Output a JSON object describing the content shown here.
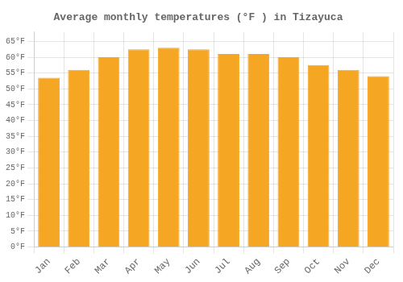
{
  "chart_data": {
    "type": "bar",
    "title": "Average monthly temperatures (°F ) in Tizayuca",
    "categories": [
      "Jan",
      "Feb",
      "Mar",
      "Apr",
      "May",
      "Jun",
      "Jul",
      "Aug",
      "Sep",
      "Oct",
      "Nov",
      "Dec"
    ],
    "values": [
      53.5,
      56.0,
      60.0,
      62.5,
      63.0,
      62.5,
      61.0,
      61.0,
      60.0,
      57.5,
      56.0,
      54.0
    ],
    "color": "#F5A623",
    "ylim": [
      0,
      68
    ],
    "yticks": [
      {
        "value": 0,
        "label": "0°F"
      },
      {
        "value": 5,
        "label": "5°F"
      },
      {
        "value": 10,
        "label": "10°F"
      },
      {
        "value": 15,
        "label": "15°F"
      },
      {
        "value": 20,
        "label": "20°F"
      },
      {
        "value": 25,
        "label": "25°F"
      },
      {
        "value": 30,
        "label": "30°F"
      },
      {
        "value": 35,
        "label": "35°F"
      },
      {
        "value": 40,
        "label": "40°F"
      },
      {
        "value": 45,
        "label": "45°F"
      },
      {
        "value": 50,
        "label": "50°F"
      },
      {
        "value": 55,
        "label": "55°F"
      },
      {
        "value": 60,
        "label": "60°F"
      },
      {
        "value": 65,
        "label": "65°F"
      }
    ],
    "grid": true
  }
}
